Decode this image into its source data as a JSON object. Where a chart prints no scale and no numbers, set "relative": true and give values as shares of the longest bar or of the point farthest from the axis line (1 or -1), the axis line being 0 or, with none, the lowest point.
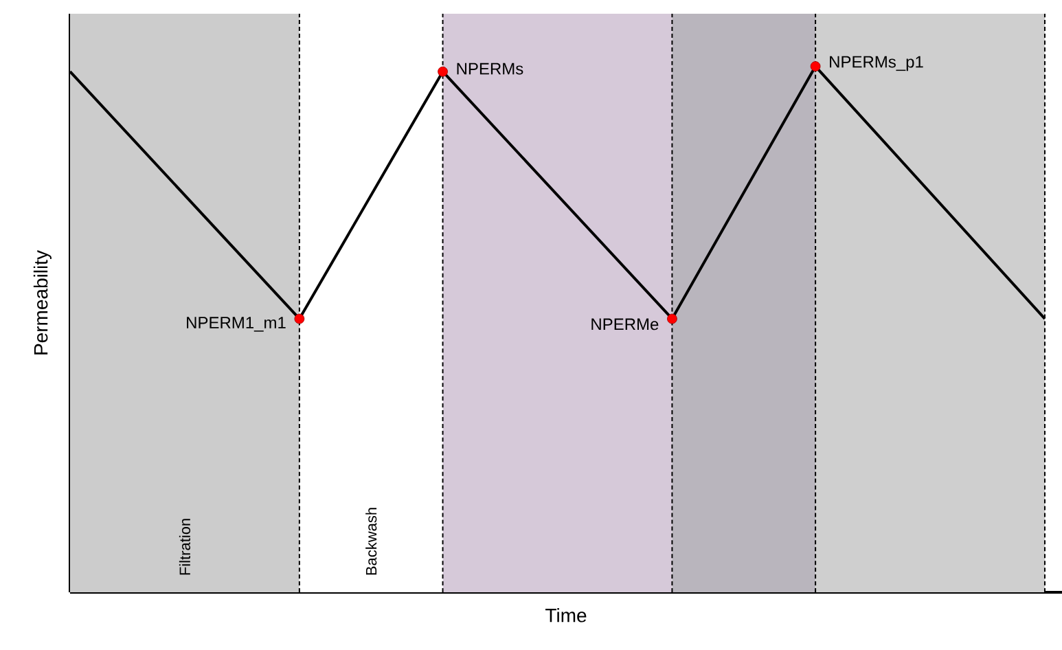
{
  "chart_data": {
    "type": "line",
    "xlabel": "Time",
    "ylabel": "Permeability",
    "relative": true,
    "tick_labels": false,
    "grid": "x",
    "categories": [
      null,
      null,
      null,
      null,
      null,
      null,
      null,
      null,
      null,
      null,
      null,
      null,
      null,
      null,
      null,
      null,
      null,
      null,
      null,
      null,
      null,
      null,
      null,
      null,
      null,
      null,
      null,
      null,
      null,
      null,
      null,
      null,
      null,
      null,
      null
    ],
    "series": [
      {
        "type": "line",
        "color": "#000000",
        "marker": "circle",
        "values": [
          0.99,
          null,
          null,
          null,
          null,
          null,
          null,
          null,
          0.52,
          null,
          null,
          null,
          null,
          0.99,
          null,
          null,
          null,
          null,
          null,
          null,
          null,
          0.52,
          null,
          null,
          null,
          null,
          1,
          null,
          null,
          null,
          null,
          null,
          null,
          null,
          0.52
        ]
      }
    ],
    "annotations": [
      "NPERM1_m1",
      "NPERMs",
      "NPERMe",
      "NPERMs_p1",
      "Filtration",
      "Backwash"
    ]
  }
}
